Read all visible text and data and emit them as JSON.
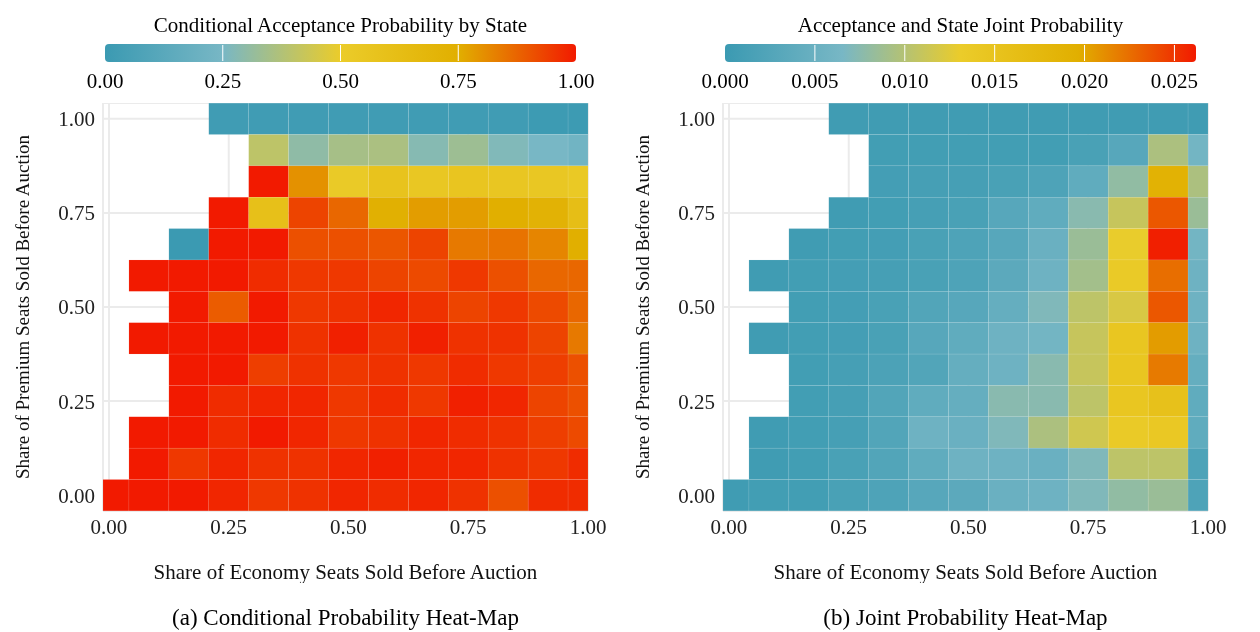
{
  "chart_data": [
    {
      "type": "heatmap",
      "clabel": "Conditional Acceptance Probability by State",
      "xlabel": "Share of Economy Seats Sold Before Auction",
      "ylabel": "Share of Premium Seats Sold Before Auction",
      "x": [
        0,
        0.0833,
        0.1667,
        0.25,
        0.3333,
        0.4167,
        0.5,
        0.5833,
        0.6667,
        0.75,
        0.8333,
        0.9167,
        1
      ],
      "y": [
        1,
        0.9167,
        0.8333,
        0.75,
        0.6667,
        0.5833,
        0.5,
        0.4167,
        0.3333,
        0.25,
        0.1667,
        0.0833,
        0
      ],
      "cells": [
        [
          null,
          null,
          null,
          0.02,
          0.02,
          0.02,
          0.02,
          0.02,
          0.02,
          0.02,
          0.02,
          0.01,
          0.01
        ],
        [
          null,
          null,
          null,
          null,
          0.4,
          0.3,
          0.35,
          0.36,
          0.28,
          0.33,
          0.27,
          0.25,
          0.22
        ],
        [
          null,
          null,
          null,
          null,
          1.0,
          0.8,
          0.52,
          0.58,
          0.54,
          0.56,
          0.55,
          0.54,
          0.53
        ],
        [
          null,
          null,
          null,
          1.0,
          0.6,
          0.93,
          0.87,
          0.74,
          0.78,
          0.78,
          0.75,
          0.72,
          0.62
        ],
        [
          null,
          null,
          0.0,
          1.0,
          1.0,
          0.91,
          0.91,
          0.9,
          0.93,
          0.84,
          0.85,
          0.82,
          0.75
        ],
        [
          null,
          1.0,
          1.0,
          1.0,
          0.97,
          0.95,
          0.95,
          0.93,
          0.92,
          0.95,
          0.91,
          0.87,
          0.87
        ],
        [
          null,
          null,
          1.0,
          0.89,
          1.0,
          0.95,
          0.96,
          0.98,
          0.96,
          0.93,
          0.95,
          0.92,
          0.87
        ],
        [
          null,
          1.0,
          1.0,
          1.0,
          1.0,
          0.96,
          0.99,
          0.96,
          0.99,
          0.96,
          0.96,
          0.93,
          0.84
        ],
        [
          null,
          null,
          1.0,
          1.0,
          0.94,
          0.96,
          0.95,
          0.96,
          0.95,
          0.97,
          0.95,
          0.94,
          0.91
        ],
        [
          null,
          null,
          1.0,
          0.97,
          0.98,
          0.98,
          0.95,
          0.97,
          0.95,
          0.99,
          0.98,
          0.93,
          0.91
        ],
        [
          null,
          1.0,
          1.0,
          0.97,
          1.0,
          0.98,
          0.95,
          0.96,
          0.98,
          0.97,
          0.96,
          0.94,
          0.92
        ],
        [
          null,
          1.0,
          0.95,
          0.98,
          0.96,
          0.96,
          0.98,
          0.99,
          0.98,
          0.98,
          0.96,
          0.95,
          0.97
        ],
        [
          1.0,
          1.0,
          1.0,
          0.98,
          0.95,
          0.96,
          0.98,
          0.97,
          0.98,
          0.96,
          0.91,
          0.97,
          0.97
        ]
      ],
      "colors": [
        "#3b9ab2",
        "#78b7c5",
        "#ebcc2a",
        "#e1af00",
        "#f21a00"
      ],
      "clim": [
        0,
        1
      ],
      "cticks": [
        {
          "value": 0,
          "label": "0.00"
        },
        {
          "value": 0.25,
          "label": "0.25"
        },
        {
          "value": 0.5,
          "label": "0.50"
        },
        {
          "value": 0.75,
          "label": "0.75"
        },
        {
          "value": 1,
          "label": "1.00"
        }
      ],
      "xlim": [
        -0.0125,
        1
      ],
      "ylim": [
        -0.042,
        1.042
      ],
      "xticks": [
        {
          "value": 0,
          "label": "0.00"
        },
        {
          "value": 0.25,
          "label": "0.25"
        },
        {
          "value": 0.5,
          "label": "0.50"
        },
        {
          "value": 0.75,
          "label": "0.75"
        },
        {
          "value": 1,
          "label": "1.00"
        }
      ],
      "yticks": [
        {
          "value": 0,
          "label": "0.00"
        },
        {
          "value": 0.25,
          "label": "0.25"
        },
        {
          "value": 0.5,
          "label": "0.50"
        },
        {
          "value": 0.75,
          "label": "0.75"
        },
        {
          "value": 1,
          "label": "1.00"
        }
      ],
      "grid": true,
      "annotations": [
        "(a) Conditional Probability Heat-Map"
      ]
    },
    {
      "type": "heatmap",
      "clabel": "Acceptance and State Joint Probability",
      "xlabel": "Share of Economy Seats Sold Before Auction",
      "ylabel": "Share of Premium Seats Sold Before Auction",
      "x": [
        0,
        0.0833,
        0.1667,
        0.25,
        0.3333,
        0.4167,
        0.5,
        0.5833,
        0.6667,
        0.75,
        0.8333,
        0.9167,
        1
      ],
      "y": [
        1,
        0.9167,
        0.8333,
        0.75,
        0.6667,
        0.5833,
        0.5,
        0.4167,
        0.3333,
        0.25,
        0.1667,
        0.0833,
        0
      ],
      "cells": [
        [
          null,
          null,
          null,
          0.0005,
          0.0005,
          0.0005,
          0.0005,
          0.0005,
          0.0005,
          0.0005,
          0.0005,
          0.0005,
          0.0005
        ],
        [
          null,
          null,
          null,
          null,
          0.0008,
          0.0008,
          0.0008,
          0.0008,
          0.0008,
          0.0015,
          0.003,
          0.0095,
          0.006
        ],
        [
          null,
          null,
          null,
          null,
          0.001,
          0.0012,
          0.0012,
          0.0015,
          0.002,
          0.004,
          0.008,
          0.019,
          0.0095
        ],
        [
          null,
          null,
          null,
          0.0005,
          0.0008,
          0.0012,
          0.0015,
          0.003,
          0.004,
          0.0075,
          0.011,
          0.0235,
          0.0085
        ],
        [
          null,
          null,
          0.0005,
          0.0008,
          0.001,
          0.0015,
          0.002,
          0.003,
          0.005,
          0.0085,
          0.013,
          0.026,
          0.006
        ],
        [
          null,
          0.0005,
          0.0008,
          0.001,
          0.0012,
          0.0015,
          0.002,
          0.0035,
          0.0055,
          0.009,
          0.0135,
          0.0225,
          0.0055
        ],
        [
          null,
          null,
          0.0008,
          0.001,
          0.0015,
          0.0025,
          0.003,
          0.0045,
          0.007,
          0.0105,
          0.012,
          0.0235,
          0.0055
        ],
        [
          null,
          0.0005,
          0.0008,
          0.001,
          0.0015,
          0.003,
          0.004,
          0.0055,
          0.006,
          0.011,
          0.0145,
          0.0205,
          0.0055
        ],
        [
          null,
          null,
          0.0008,
          0.0012,
          0.0018,
          0.0025,
          0.0045,
          0.0055,
          0.0075,
          0.011,
          0.0145,
          0.022,
          0.0045
        ],
        [
          null,
          null,
          0.0008,
          0.0012,
          0.0025,
          0.004,
          0.0045,
          0.0075,
          0.0075,
          0.0105,
          0.0145,
          0.0155,
          0.004
        ],
        [
          null,
          0.0005,
          0.0008,
          0.0012,
          0.0025,
          0.0055,
          0.005,
          0.007,
          0.0095,
          0.0115,
          0.0135,
          0.014,
          0.004
        ],
        [
          null,
          0.0005,
          0.0008,
          0.0015,
          0.0025,
          0.004,
          0.0055,
          0.0055,
          0.005,
          0.007,
          0.0105,
          0.0105,
          0.002
        ],
        [
          0.0005,
          0.0008,
          0.0008,
          0.0015,
          0.002,
          0.003,
          0.0035,
          0.005,
          0.0055,
          0.007,
          0.008,
          0.0085,
          0.002
        ]
      ],
      "colors": [
        "#3b9ab2",
        "#78b7c5",
        "#ebcc2a",
        "#e1af00",
        "#f21a00"
      ],
      "clim": [
        0,
        0.0262
      ],
      "cticks": [
        {
          "value": 0,
          "label": "0.000"
        },
        {
          "value": 0.005,
          "label": "0.005"
        },
        {
          "value": 0.01,
          "label": "0.010"
        },
        {
          "value": 0.015,
          "label": "0.015"
        },
        {
          "value": 0.02,
          "label": "0.020"
        },
        {
          "value": 0.025,
          "label": "0.025"
        }
      ],
      "xlim": [
        -0.0125,
        1
      ],
      "ylim": [
        -0.042,
        1.042
      ],
      "xticks": [
        {
          "value": 0,
          "label": "0.00"
        },
        {
          "value": 0.25,
          "label": "0.25"
        },
        {
          "value": 0.5,
          "label": "0.50"
        },
        {
          "value": 0.75,
          "label": "0.75"
        },
        {
          "value": 1,
          "label": "1.00"
        }
      ],
      "yticks": [
        {
          "value": 0,
          "label": "0.00"
        },
        {
          "value": 0.25,
          "label": "0.25"
        },
        {
          "value": 0.5,
          "label": "0.50"
        },
        {
          "value": 0.75,
          "label": "0.75"
        },
        {
          "value": 1,
          "label": "1.00"
        }
      ],
      "grid": true,
      "annotations": [
        "(b) Joint Probability Heat-Map"
      ]
    }
  ]
}
